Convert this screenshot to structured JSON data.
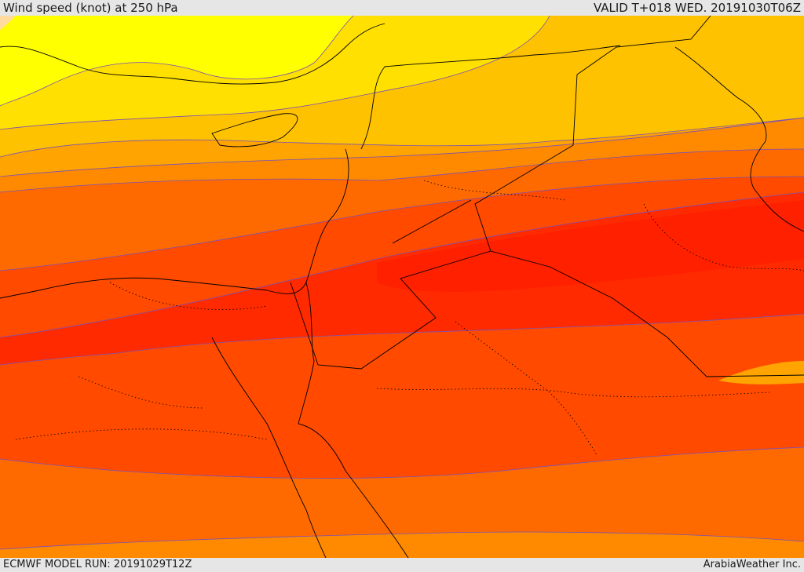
{
  "header": {
    "title": "Wind speed (knot) at 250 hPa",
    "valid": "VALID T+018 WED. 20191030T06Z"
  },
  "footer": {
    "model_run": "ECMWF MODEL RUN: 20191029T12Z",
    "credit": "ArabiaWeather Inc."
  },
  "map": {
    "field": "wind speed",
    "level_hpa": 250,
    "colors": {
      "band_0": "#ffdba0",
      "band_1": "#ffff00",
      "band_2": "#ffe000",
      "band_3": "#ffc200",
      "band_4": "#ffa400",
      "band_5": "#ff8a00",
      "band_6": "#ff6a00",
      "band_7": "#ff4a00",
      "band_8": "#ff2a00",
      "band_9": "#ff2000",
      "contour": "#7a50b8",
      "coast": "#000000"
    }
  }
}
